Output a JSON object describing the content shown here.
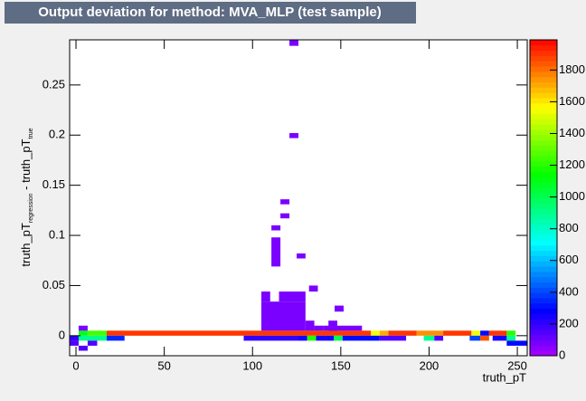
{
  "chart_data": {
    "type": "heatmap",
    "title": "Output deviation for method: MVA_MLP (test sample)",
    "x_label": "truth_pT",
    "y_label_parts": [
      "truth_pT",
      "regression",
      " - truth_pT",
      "true"
    ],
    "xlim": [
      -3.6,
      255.6
    ],
    "xticks": [
      0,
      50,
      100,
      150,
      200,
      250
    ],
    "ylim": [
      -0.02,
      0.295
    ],
    "yticks": [
      0,
      0.05,
      0.1,
      0.15,
      0.2,
      0.25
    ],
    "zlim": [
      0,
      1990
    ],
    "zticks": [
      0,
      200,
      400,
      600,
      800,
      1000,
      1200,
      1400,
      1600,
      1800
    ],
    "cells": [
      [
        1.5,
        6.6,
        0,
        0.005,
        1100
      ],
      [
        6.6,
        17.4,
        0,
        0.005,
        1250
      ],
      [
        17.4,
        167,
        0,
        0.005,
        1900
      ],
      [
        167,
        172,
        0,
        0.005,
        1550
      ],
      [
        172,
        177,
        0,
        0.005,
        1700
      ],
      [
        177,
        193,
        0,
        0.005,
        1900
      ],
      [
        193,
        208,
        0,
        0.005,
        1750
      ],
      [
        208,
        224,
        0,
        0.005,
        1900
      ],
      [
        224,
        229,
        0,
        0.005,
        1550
      ],
      [
        229,
        234,
        0,
        0.005,
        300
      ],
      [
        234,
        244,
        0,
        0.005,
        1900
      ],
      [
        244,
        249,
        0,
        0.005,
        1200
      ],
      [
        1.5,
        6.6,
        0.005,
        0.01,
        80
      ],
      [
        105,
        130,
        0.005,
        0.034,
        80
      ],
      [
        115,
        130,
        0.034,
        0.044,
        80
      ],
      [
        105,
        110,
        0.034,
        0.044,
        80
      ],
      [
        130,
        135,
        0.005,
        0.015,
        80
      ],
      [
        135,
        140,
        0.005,
        0.01,
        80
      ],
      [
        143,
        148,
        0.005,
        0.015,
        80
      ],
      [
        146.5,
        151.6,
        0.024,
        0.03,
        80
      ],
      [
        140,
        162,
        0.005,
        0.01,
        80
      ],
      [
        132,
        137,
        0.044,
        0.05,
        80
      ],
      [
        110.7,
        115.8,
        0.069,
        0.098,
        80
      ],
      [
        125,
        130,
        0.077,
        0.082,
        80
      ],
      [
        110.7,
        115.8,
        0.105,
        0.11,
        80
      ],
      [
        115.8,
        120.9,
        0.117,
        0.122,
        80
      ],
      [
        115.8,
        120.9,
        0.131,
        0.136,
        80
      ],
      [
        120.9,
        126,
        0.197,
        0.202,
        80
      ],
      [
        120.9,
        126,
        0.289,
        0.295,
        80
      ],
      [
        -3.6,
        1.5,
        -0.005,
        0,
        200
      ],
      [
        1.5,
        17.4,
        -0.005,
        0,
        900
      ],
      [
        17.4,
        27.5,
        -0.005,
        0,
        350
      ],
      [
        95,
        126,
        -0.005,
        0,
        200
      ],
      [
        126,
        131,
        -0.005,
        0,
        250
      ],
      [
        131,
        136,
        -0.005,
        0,
        1200
      ],
      [
        136,
        146,
        -0.005,
        0,
        250
      ],
      [
        146,
        151,
        -0.005,
        0,
        1000
      ],
      [
        151,
        172,
        -0.005,
        0,
        300
      ],
      [
        172,
        187,
        -0.005,
        0,
        150
      ],
      [
        197,
        203,
        -0.005,
        0,
        900
      ],
      [
        203,
        208,
        -0.005,
        0,
        150
      ],
      [
        223,
        229,
        -0.005,
        0,
        400
      ],
      [
        229,
        234,
        -0.005,
        0,
        1850
      ],
      [
        236,
        244,
        -0.005,
        0,
        250
      ],
      [
        244,
        249,
        -0.005,
        0,
        900
      ],
      [
        -3.6,
        1.5,
        -0.01,
        -0.005,
        150
      ],
      [
        6.6,
        12,
        -0.01,
        -0.005,
        150
      ],
      [
        244,
        255.6,
        -0.01,
        -0.005,
        300
      ],
      [
        1.5,
        6.6,
        -0.015,
        -0.01,
        150
      ]
    ]
  }
}
